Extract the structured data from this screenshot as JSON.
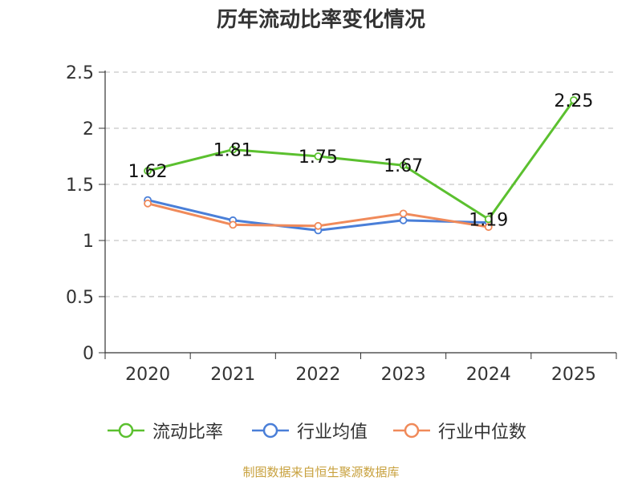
{
  "chart_data": {
    "type": "line",
    "title": "历年流动比率变化情况",
    "categories": [
      "2020",
      "2021",
      "2022",
      "2023",
      "2024",
      "2025"
    ],
    "ylim": [
      0,
      2.5
    ],
    "yticks": [
      "0",
      "0.5",
      "1",
      "1.5",
      "2",
      "2.5"
    ],
    "grid": true,
    "legend_position": "bottom",
    "series": [
      {
        "name": "流动比率",
        "color": "#5bc02f",
        "values": [
          1.62,
          1.81,
          1.75,
          1.67,
          1.19,
          2.25
        ],
        "labels": [
          "1.62",
          "1.81",
          "1.75",
          "1.67",
          "1.19",
          "2.25"
        ]
      },
      {
        "name": "行业均值",
        "color": "#4a7fd8",
        "values": [
          1.36,
          1.18,
          1.09,
          1.18,
          1.16,
          null
        ]
      },
      {
        "name": "行业中位数",
        "color": "#f08a5a",
        "values": [
          1.33,
          1.14,
          1.13,
          1.24,
          1.12,
          null
        ]
      }
    ],
    "source": "制图数据来自恒生聚源数据库"
  }
}
